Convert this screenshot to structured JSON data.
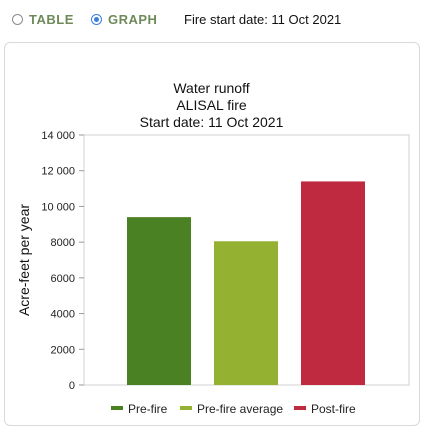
{
  "view_toggle": {
    "table_label": "TABLE",
    "graph_label": "GRAPH",
    "selected": "GRAPH"
  },
  "fire_start_text": "Fire start date: 11 Oct 2021",
  "colors": {
    "accent_radio": "#3b7de0",
    "toggle_label": "#6f8a5a",
    "pre_fire": "#4a8122",
    "pre_fire_average": "#95b132",
    "post_fire": "#bf2a41"
  },
  "chart_data": {
    "type": "bar",
    "title": "Water runoff",
    "subtitle_lines": [
      "ALISAL fire",
      "Start date: 11 Oct 2021"
    ],
    "xlabel": "",
    "ylabel": "Acre-feet per year",
    "ylim": [
      0,
      14000
    ],
    "yticks": [
      0,
      2000,
      4000,
      6000,
      8000,
      10000,
      12000,
      14000
    ],
    "ytick_labels": [
      "0",
      "2000",
      "4000",
      "6000",
      "8000",
      "10 000",
      "12 000",
      "14 000"
    ],
    "grid": false,
    "legend_position": "bottom",
    "categories": [
      "Pre-fire",
      "Pre-fire average",
      "Post-fire"
    ],
    "values": [
      9400,
      8050,
      11400
    ],
    "legend": [
      "Pre-fire",
      "Pre-fire average",
      "Post-fire"
    ]
  }
}
